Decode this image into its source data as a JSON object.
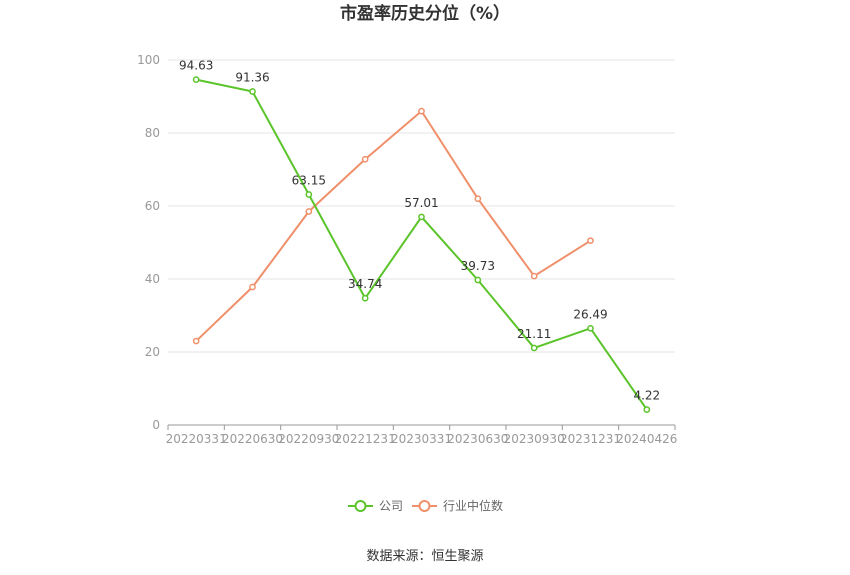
{
  "chart_data": {
    "type": "line",
    "title": "市盈率历史分位（%）",
    "categories": [
      "20220331",
      "20220630",
      "20220930",
      "20221231",
      "20230331",
      "20230630",
      "20230930",
      "20231231",
      "20240426"
    ],
    "ylim": [
      0,
      100
    ],
    "yticks": [
      "0",
      "20",
      "40",
      "60",
      "80",
      "100"
    ],
    "grid": true,
    "legend_position": "bottom",
    "series": [
      {
        "name": "公司",
        "color": "#5ac42a",
        "values": [
          94.63,
          91.36,
          63.15,
          34.74,
          57.01,
          39.73,
          21.11,
          26.49,
          4.22
        ],
        "labels": [
          "94.63",
          "91.36",
          "63.15",
          "34.74",
          "57.01",
          "39.73",
          "21.11",
          "26.49",
          "4.22"
        ]
      },
      {
        "name": "行业中位数",
        "color": "#f0906a",
        "values": [
          23.0,
          37.8,
          58.5,
          72.8,
          86.0,
          62.0,
          40.8,
          50.5,
          null
        ]
      }
    ],
    "source": "数据来源：恒生聚源"
  }
}
